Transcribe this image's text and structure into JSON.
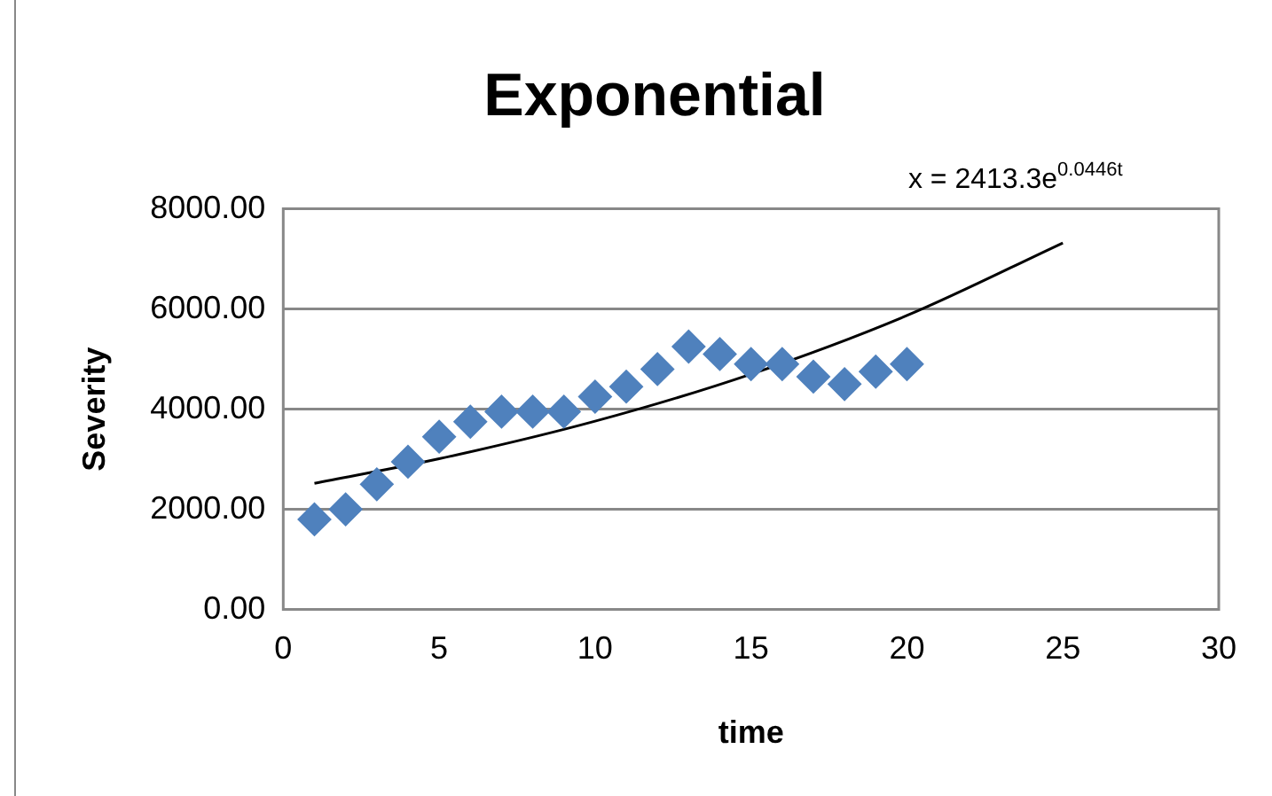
{
  "chart_data": {
    "type": "scatter",
    "title": "Exponential",
    "xlabel": "time",
    "ylabel": "Severity",
    "xlim": [
      0,
      30
    ],
    "xticks": [
      0,
      5,
      10,
      15,
      20,
      25,
      30
    ],
    "ylim": [
      0,
      8000
    ],
    "yticks": [
      {
        "value": 0,
        "label": "0.00"
      },
      {
        "value": 2000,
        "label": "2000.00"
      },
      {
        "value": 4000,
        "label": "4000.00"
      },
      {
        "value": 6000,
        "label": "6000.00"
      },
      {
        "value": 8000,
        "label": "8000.00"
      }
    ],
    "grid": "y",
    "legend": false,
    "marker": "diamond",
    "series": [
      {
        "color": "#4f81bd",
        "x": [
          1,
          2,
          3,
          4,
          5,
          6,
          7,
          8,
          9,
          10,
          11,
          12,
          13,
          14,
          15,
          16,
          17,
          18,
          19,
          20
        ],
        "values": [
          1800,
          2000,
          2500,
          2950,
          3450,
          3750,
          3950,
          3950,
          3950,
          4250,
          4450,
          4800,
          5250,
          5100,
          4900,
          4900,
          4650,
          4500,
          4750,
          4900
        ]
      },
      {
        "type": "line",
        "color": "#000000",
        "marker": "none",
        "x": [
          1,
          5,
          10,
          15,
          20,
          25
        ],
        "values": [
          2520,
          3010,
          3760,
          4700,
          5870,
          7320
        ]
      }
    ],
    "annotations": [
      "x = 2413.3e$^{0.0446t}$"
    ]
  }
}
